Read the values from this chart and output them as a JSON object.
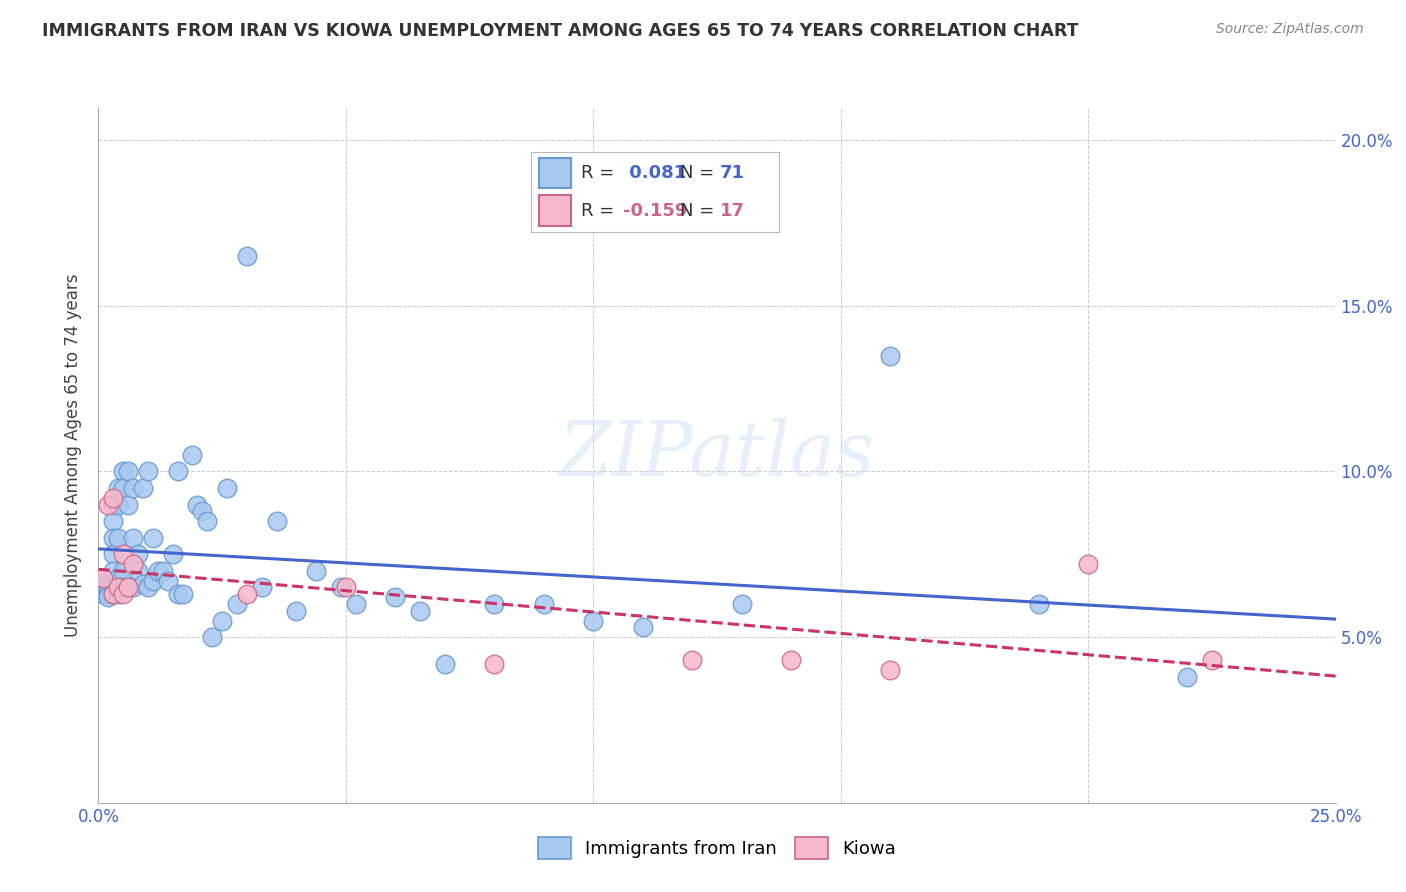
{
  "title": "IMMIGRANTS FROM IRAN VS KIOWA UNEMPLOYMENT AMONG AGES 65 TO 74 YEARS CORRELATION CHART",
  "source": "Source: ZipAtlas.com",
  "ylabel": "Unemployment Among Ages 65 to 74 years",
  "xlim": [
    0.0,
    0.25
  ],
  "ylim": [
    0.0,
    0.21
  ],
  "xticks": [
    0.0,
    0.05,
    0.1,
    0.15,
    0.2,
    0.25
  ],
  "xticklabels": [
    "0.0%",
    "",
    "",
    "",
    "",
    "25.0%"
  ],
  "yticks": [
    0.05,
    0.1,
    0.15,
    0.2
  ],
  "yticklabels": [
    "5.0%",
    "10.0%",
    "15.0%",
    "20.0%"
  ],
  "legend_items": [
    "Immigrants from Iran",
    "Kiowa"
  ],
  "iran_color": "#a8c8f0",
  "iran_edge_color": "#6699cc",
  "kiowa_color": "#f5b8cc",
  "kiowa_edge_color": "#cc6688",
  "iran_line_color": "#4466cc",
  "kiowa_line_color": "#cc3366",
  "watermark": "ZIPatlas",
  "iran_R": 0.081,
  "iran_N": 71,
  "kiowa_R": -0.159,
  "kiowa_N": 17,
  "iran_scatter_x": [
    0.001,
    0.001,
    0.001,
    0.002,
    0.002,
    0.002,
    0.002,
    0.002,
    0.003,
    0.003,
    0.003,
    0.003,
    0.003,
    0.003,
    0.003,
    0.004,
    0.004,
    0.004,
    0.004,
    0.004,
    0.005,
    0.005,
    0.005,
    0.005,
    0.006,
    0.006,
    0.006,
    0.007,
    0.007,
    0.007,
    0.008,
    0.008,
    0.009,
    0.009,
    0.01,
    0.01,
    0.011,
    0.011,
    0.012,
    0.013,
    0.014,
    0.015,
    0.016,
    0.016,
    0.017,
    0.019,
    0.02,
    0.021,
    0.022,
    0.023,
    0.025,
    0.026,
    0.028,
    0.03,
    0.033,
    0.036,
    0.04,
    0.044,
    0.049,
    0.052,
    0.06,
    0.065,
    0.07,
    0.08,
    0.09,
    0.1,
    0.11,
    0.13,
    0.16,
    0.19,
    0.22
  ],
  "iran_scatter_y": [
    0.065,
    0.064,
    0.063,
    0.067,
    0.066,
    0.064,
    0.063,
    0.062,
    0.09,
    0.085,
    0.08,
    0.075,
    0.07,
    0.066,
    0.063,
    0.095,
    0.09,
    0.08,
    0.068,
    0.063,
    0.1,
    0.095,
    0.07,
    0.065,
    0.1,
    0.09,
    0.065,
    0.095,
    0.08,
    0.065,
    0.075,
    0.07,
    0.095,
    0.066,
    0.1,
    0.065,
    0.08,
    0.067,
    0.07,
    0.07,
    0.067,
    0.075,
    0.1,
    0.063,
    0.063,
    0.105,
    0.09,
    0.088,
    0.085,
    0.05,
    0.055,
    0.095,
    0.06,
    0.165,
    0.065,
    0.085,
    0.058,
    0.07,
    0.065,
    0.06,
    0.062,
    0.058,
    0.042,
    0.06,
    0.06,
    0.055,
    0.053,
    0.06,
    0.135,
    0.06,
    0.038
  ],
  "kiowa_scatter_x": [
    0.001,
    0.002,
    0.003,
    0.003,
    0.004,
    0.005,
    0.005,
    0.006,
    0.007,
    0.03,
    0.05,
    0.08,
    0.12,
    0.14,
    0.16,
    0.2,
    0.225
  ],
  "kiowa_scatter_y": [
    0.068,
    0.09,
    0.092,
    0.063,
    0.065,
    0.075,
    0.063,
    0.065,
    0.072,
    0.063,
    0.065,
    0.042,
    0.043,
    0.043,
    0.04,
    0.072,
    0.043
  ],
  "background_color": "#ffffff",
  "grid_color": "#cccccc"
}
